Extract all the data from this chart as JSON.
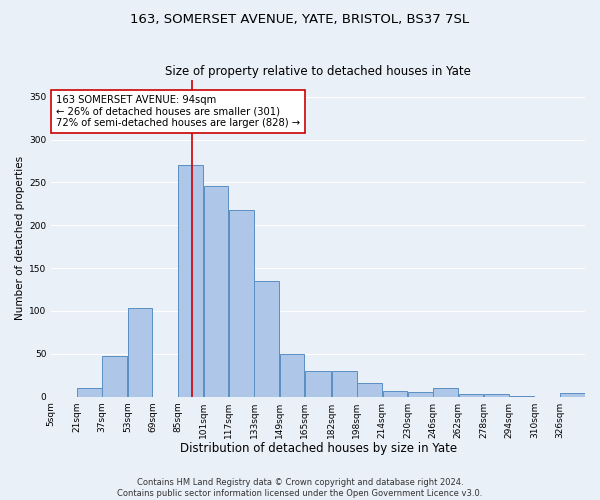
{
  "title1": "163, SOMERSET AVENUE, YATE, BRISTOL, BS37 7SL",
  "title2": "Size of property relative to detached houses in Yate",
  "xlabel": "Distribution of detached houses by size in Yate",
  "ylabel": "Number of detached properties",
  "footnote": "Contains HM Land Registry data © Crown copyright and database right 2024.\nContains public sector information licensed under the Open Government Licence v3.0.",
  "bin_edges": [
    5,
    21,
    37,
    53,
    69,
    85,
    101,
    117,
    133,
    149,
    165,
    182,
    198,
    214,
    230,
    246,
    262,
    278,
    294,
    310,
    326,
    342
  ],
  "bar_heights": [
    0,
    10,
    47,
    104,
    0,
    270,
    246,
    218,
    135,
    50,
    30,
    30,
    16,
    6,
    5,
    10,
    3,
    3,
    1,
    0,
    4
  ],
  "bar_color": "#aec6e8",
  "bar_edge_color": "#5a8fc2",
  "bar_linewidth": 0.7,
  "red_line_x": 94,
  "red_line_color": "#cc0000",
  "annotation_text": "163 SOMERSET AVENUE: 94sqm\n← 26% of detached houses are smaller (301)\n72% of semi-detached houses are larger (828) →",
  "annotation_box_color": "#ffffff",
  "annotation_box_edge": "#cc0000",
  "ylim": [
    0,
    370
  ],
  "xlim": [
    5,
    342
  ],
  "yticks": [
    0,
    50,
    100,
    150,
    200,
    250,
    300,
    350
  ],
  "xtick_labels": [
    "5sqm",
    "21sqm",
    "37sqm",
    "53sqm",
    "69sqm",
    "85sqm",
    "101sqm",
    "117sqm",
    "133sqm",
    "149sqm",
    "165sqm",
    "182sqm",
    "198sqm",
    "214sqm",
    "230sqm",
    "246sqm",
    "262sqm",
    "278sqm",
    "294sqm",
    "310sqm",
    "326sqm"
  ],
  "background_color": "#eaf0f8",
  "grid_color": "#ffffff",
  "title1_fontsize": 9.5,
  "title2_fontsize": 8.5,
  "xlabel_fontsize": 8.5,
  "ylabel_fontsize": 7.5,
  "tick_fontsize": 6.5,
  "annotation_fontsize": 7.2,
  "footnote_fontsize": 6.0
}
